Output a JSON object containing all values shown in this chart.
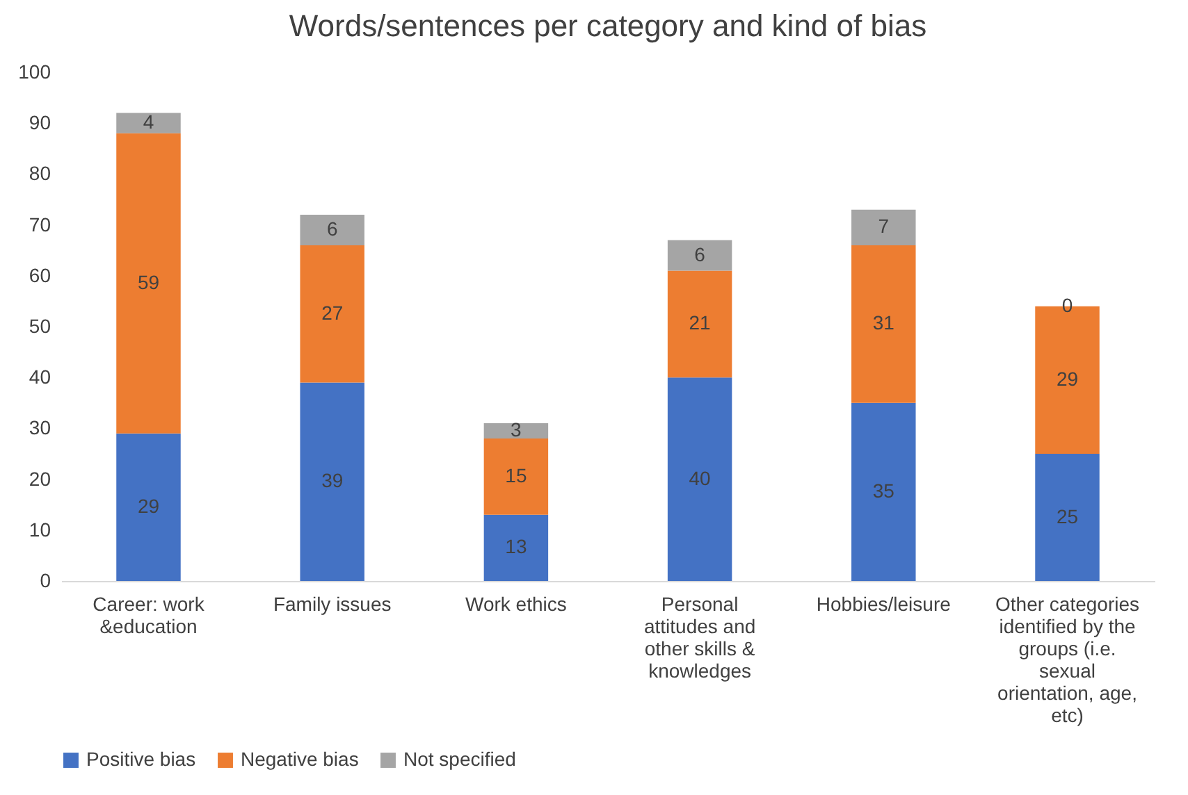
{
  "chart_data": {
    "type": "bar",
    "title": "Words/sentences per category and kind of bias",
    "stacked": true,
    "data_labels": true,
    "grid": false,
    "legend": "bottom",
    "categories": [
      "Career: work &education",
      "Family issues",
      "Work ethics",
      "Personal attitudes and other skills & knowledges",
      "Hobbies/leisure",
      "Other categories identified by the groups (i.e. sexual orientation, age, etc)"
    ],
    "ylim": [
      0,
      100
    ],
    "yticks": [
      0,
      10,
      20,
      30,
      40,
      50,
      60,
      70,
      80,
      90,
      100
    ],
    "series": [
      {
        "name": "Positive bias",
        "color": "#4472c4",
        "values": [
          29,
          39,
          13,
          40,
          35,
          25
        ]
      },
      {
        "name": "Negative bias",
        "color": "#ed7d31",
        "values": [
          59,
          27,
          15,
          21,
          31,
          29
        ]
      },
      {
        "name": "Not specified",
        "color": "#a5a5a5",
        "values": [
          4,
          6,
          3,
          6,
          7,
          0
        ]
      }
    ]
  }
}
